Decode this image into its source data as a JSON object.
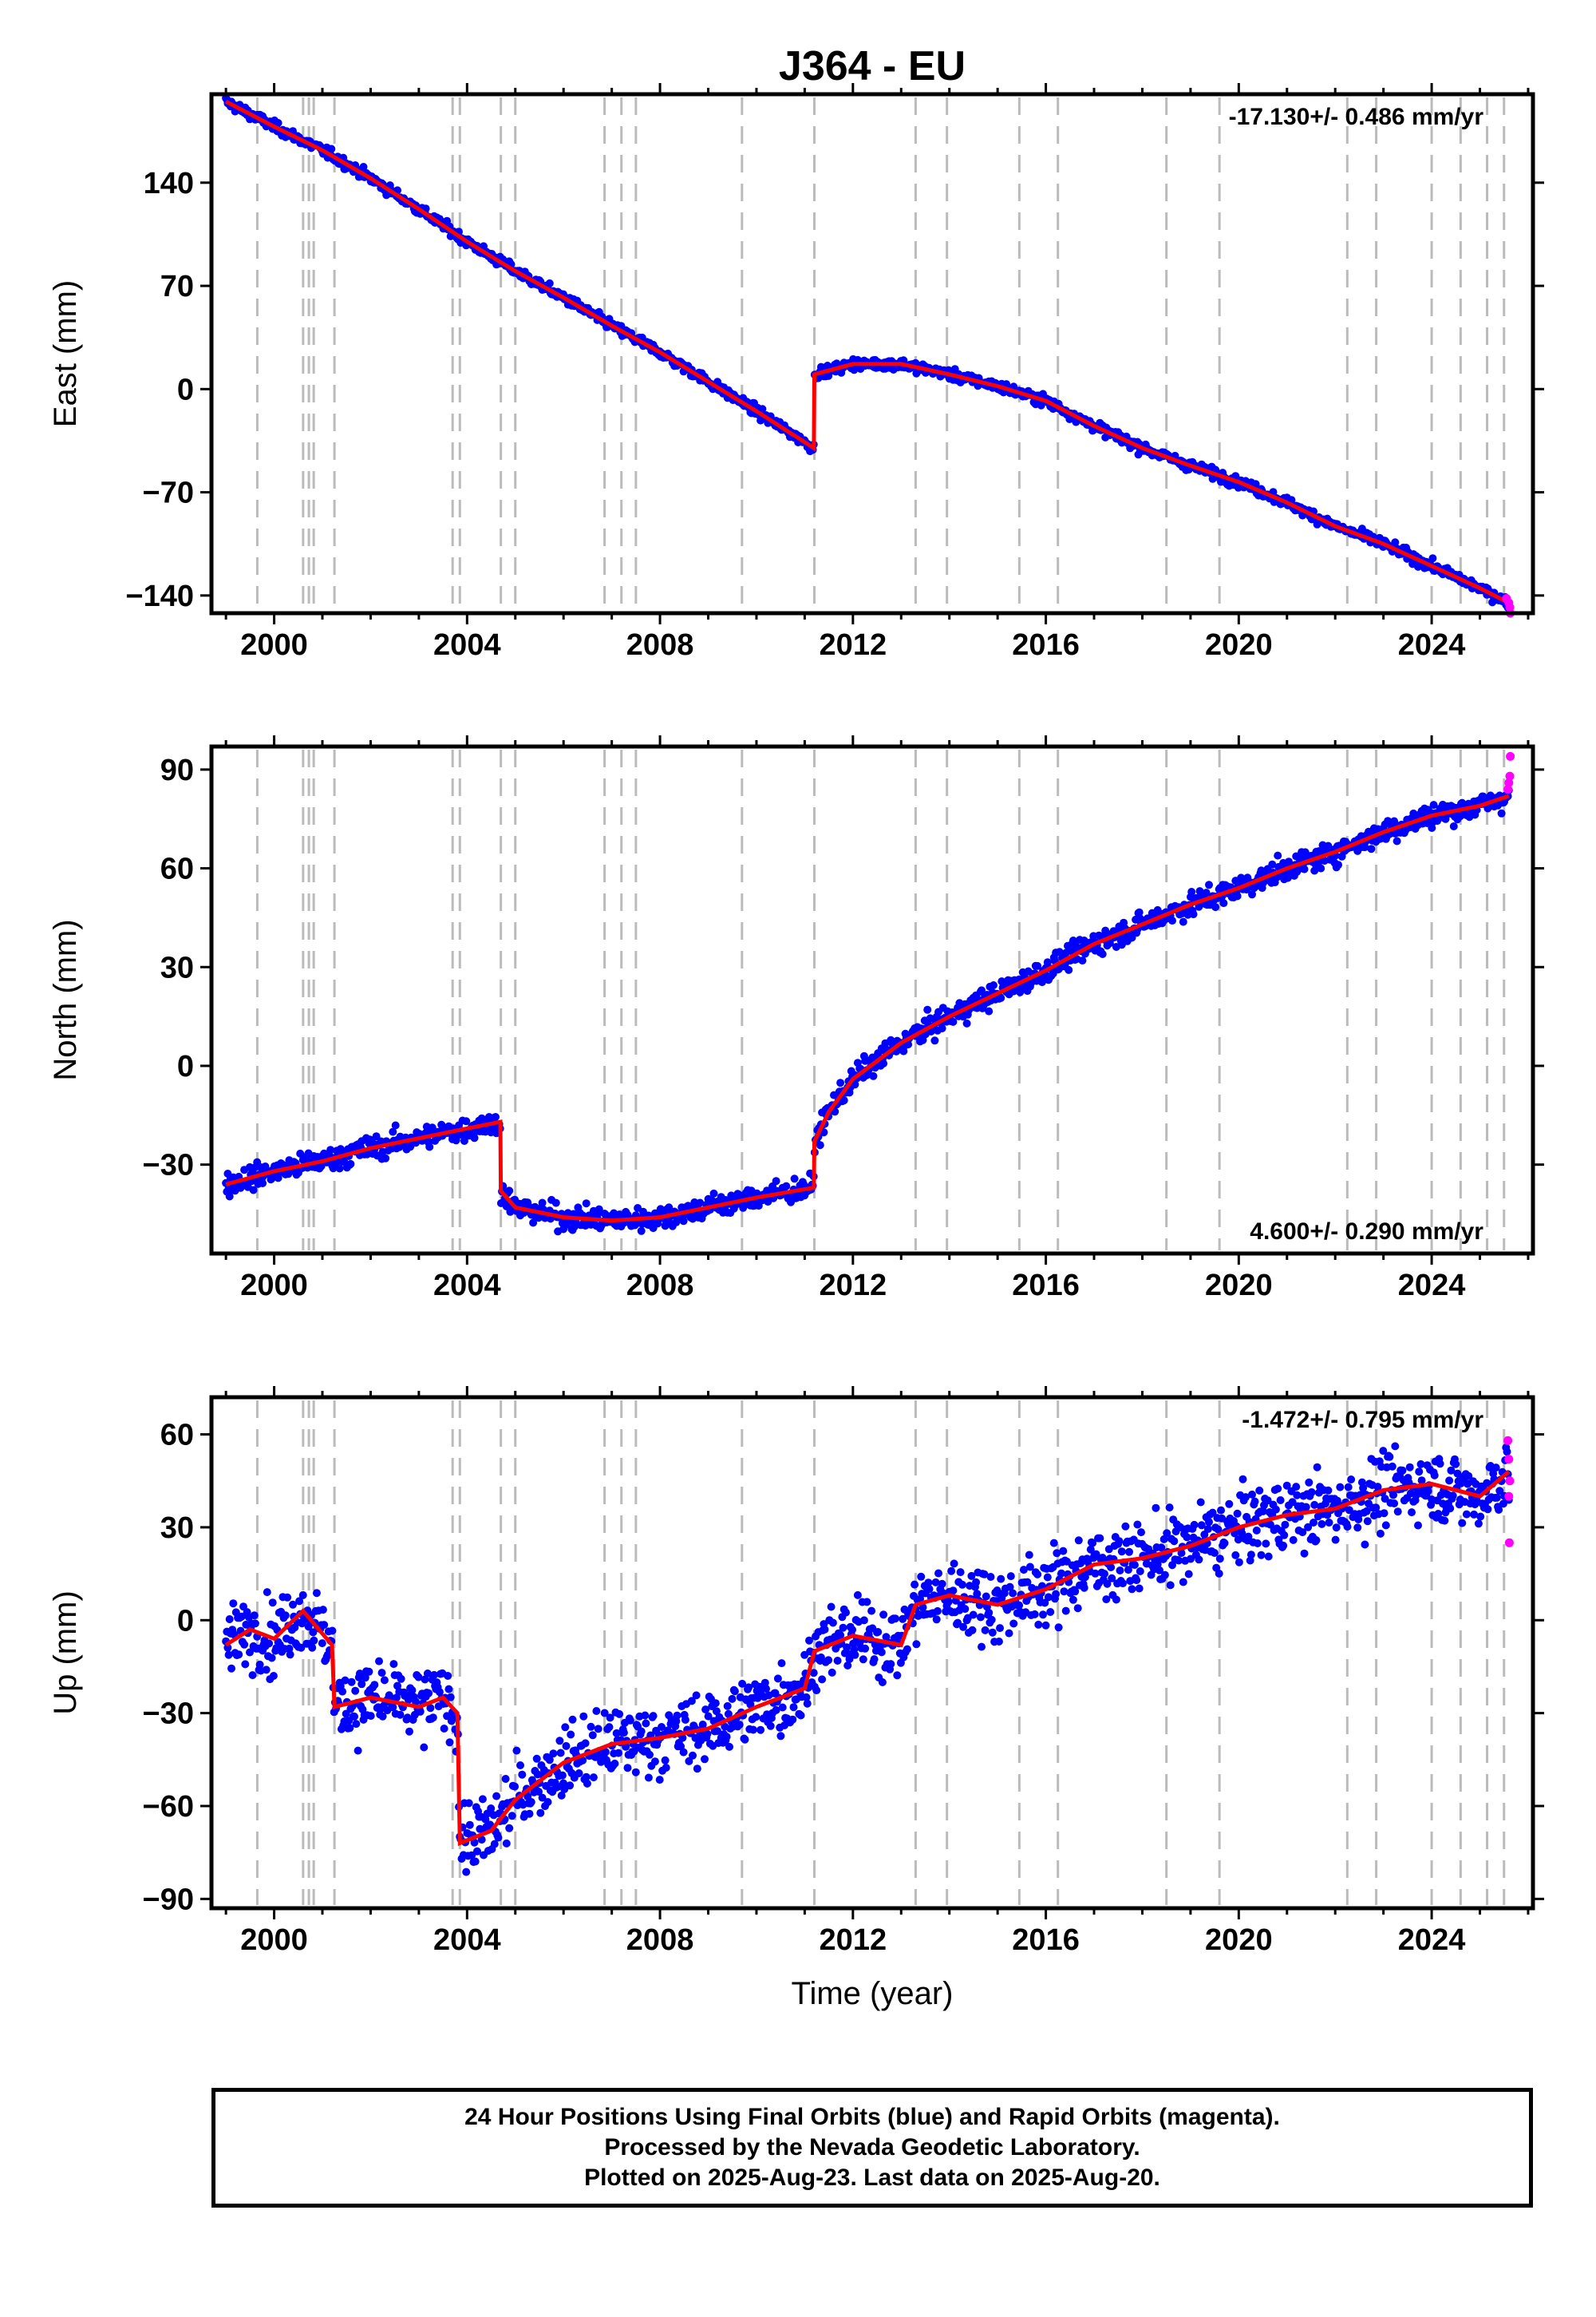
{
  "title": "J364 - EU",
  "footer": {
    "line1": "24 Hour Positions Using Final Orbits (blue) and Rapid Orbits (magenta).",
    "line2": "Processed by the Nevada Geodetic Laboratory.",
    "line3": "Plotted on 2025-Aug-23. Last data on 2025-Aug-20."
  },
  "colors": {
    "final_orbits": "#0000ff",
    "rapid_orbits": "#ff00ff",
    "model_fit": "#ff0000",
    "event_lines": "#bbbbbb"
  },
  "chart_data": [
    {
      "type": "scatter",
      "title": "J364 - EU",
      "xlabel": "",
      "ylabel": "East (mm)",
      "xlim": [
        1998.7,
        2026.1
      ],
      "ylim": [
        -152,
        200
      ],
      "x_ticks": [
        2000,
        2004,
        2008,
        2012,
        2016,
        2020,
        2024
      ],
      "y_ticks": [
        140,
        70,
        0,
        -70,
        -140
      ],
      "annotation": "-17.130+/- 0.486 mm/yr",
      "annotation_position": "top-right",
      "event_lines": [
        1999.65,
        2000.6,
        2000.72,
        2000.82,
        2001.25,
        2003.7,
        2003.85,
        2004.7,
        2005.0,
        2006.85,
        2007.2,
        2007.5,
        2009.7,
        2011.2,
        2013.3,
        2013.95,
        2015.45,
        2016.25,
        2018.5,
        2019.6,
        2022.25,
        2022.85,
        2024.0,
        2024.6,
        2025.15,
        2025.5
      ],
      "fit_knots": [
        {
          "x": 1999.0,
          "y": 195
        },
        {
          "x": 2000.0,
          "y": 178
        },
        {
          "x": 2001.0,
          "y": 162
        },
        {
          "x": 2002.0,
          "y": 143
        },
        {
          "x": 2003.0,
          "y": 122
        },
        {
          "x": 2004.0,
          "y": 100
        },
        {
          "x": 2005.0,
          "y": 80
        },
        {
          "x": 2006.0,
          "y": 62
        },
        {
          "x": 2007.0,
          "y": 43
        },
        {
          "x": 2008.0,
          "y": 25
        },
        {
          "x": 2009.0,
          "y": 5
        },
        {
          "x": 2010.0,
          "y": -15
        },
        {
          "x": 2011.19,
          "y": -40
        },
        {
          "x": 2011.2,
          "y": 10
        },
        {
          "x": 2012.0,
          "y": 17
        },
        {
          "x": 2013.0,
          "y": 17
        },
        {
          "x": 2014.0,
          "y": 10
        },
        {
          "x": 2015.0,
          "y": 2
        },
        {
          "x": 2016.0,
          "y": -8
        },
        {
          "x": 2017.0,
          "y": -25
        },
        {
          "x": 2018.0,
          "y": -40
        },
        {
          "x": 2019.0,
          "y": -52
        },
        {
          "x": 2020.0,
          "y": -63
        },
        {
          "x": 2021.0,
          "y": -77
        },
        {
          "x": 2022.0,
          "y": -93
        },
        {
          "x": 2023.0,
          "y": -105
        },
        {
          "x": 2024.0,
          "y": -120
        },
        {
          "x": 2025.0,
          "y": -135
        },
        {
          "x": 2025.6,
          "y": -145
        }
      ],
      "series": [
        {
          "name": "Final Orbits",
          "color": "#0000ff",
          "scatter": 2.5
        },
        {
          "name": "Rapid Orbits",
          "color": "#ff00ff",
          "points": [
            [
              2025.55,
              -142
            ],
            [
              2025.6,
              -145
            ],
            [
              2025.62,
              -148
            ],
            [
              2025.63,
              -152
            ]
          ]
        }
      ]
    },
    {
      "type": "scatter",
      "xlabel": "",
      "ylabel": "North (mm)",
      "xlim": [
        1998.7,
        2026.1
      ],
      "ylim": [
        -57,
        97
      ],
      "x_ticks": [
        2000,
        2004,
        2008,
        2012,
        2016,
        2020,
        2024
      ],
      "y_ticks": [
        90,
        60,
        30,
        0,
        -30
      ],
      "annotation": "4.600+/- 0.290 mm/yr",
      "annotation_position": "bottom-right",
      "event_lines": [
        1999.65,
        2000.6,
        2000.72,
        2000.82,
        2001.25,
        2003.7,
        2003.85,
        2004.7,
        2005.0,
        2006.85,
        2007.2,
        2007.5,
        2009.7,
        2011.2,
        2013.3,
        2013.95,
        2015.45,
        2016.25,
        2018.5,
        2019.6,
        2022.25,
        2022.85,
        2024.0,
        2024.6,
        2025.15,
        2025.5
      ],
      "fit_knots": [
        {
          "x": 1999.0,
          "y": -36
        },
        {
          "x": 2000.0,
          "y": -32
        },
        {
          "x": 2001.0,
          "y": -29
        },
        {
          "x": 2002.0,
          "y": -25
        },
        {
          "x": 2003.0,
          "y": -22
        },
        {
          "x": 2004.0,
          "y": -19
        },
        {
          "x": 2004.69,
          "y": -17
        },
        {
          "x": 2004.7,
          "y": -38
        },
        {
          "x": 2005.0,
          "y": -43
        },
        {
          "x": 2006.0,
          "y": -46
        },
        {
          "x": 2007.0,
          "y": -47
        },
        {
          "x": 2008.0,
          "y": -46
        },
        {
          "x": 2009.0,
          "y": -43
        },
        {
          "x": 2010.0,
          "y": -40
        },
        {
          "x": 2011.19,
          "y": -37
        },
        {
          "x": 2011.2,
          "y": -23
        },
        {
          "x": 2011.5,
          "y": -14
        },
        {
          "x": 2012.0,
          "y": -4
        },
        {
          "x": 2013.0,
          "y": 7
        },
        {
          "x": 2014.0,
          "y": 15
        },
        {
          "x": 2015.0,
          "y": 22
        },
        {
          "x": 2016.0,
          "y": 29
        },
        {
          "x": 2017.0,
          "y": 37
        },
        {
          "x": 2018.0,
          "y": 43
        },
        {
          "x": 2019.0,
          "y": 49
        },
        {
          "x": 2020.0,
          "y": 54
        },
        {
          "x": 2021.0,
          "y": 60
        },
        {
          "x": 2022.0,
          "y": 65
        },
        {
          "x": 2023.0,
          "y": 71
        },
        {
          "x": 2024.0,
          "y": 76
        },
        {
          "x": 2025.0,
          "y": 79
        },
        {
          "x": 2025.6,
          "y": 82
        }
      ],
      "series": [
        {
          "name": "Final Orbits",
          "color": "#0000ff",
          "scatter": 2.5
        },
        {
          "name": "Rapid Orbits",
          "color": "#ff00ff",
          "points": [
            [
              2025.58,
              84
            ],
            [
              2025.6,
              86
            ],
            [
              2025.62,
              88
            ],
            [
              2025.63,
              94
            ]
          ]
        }
      ]
    },
    {
      "type": "scatter",
      "xlabel": "Time (year)",
      "ylabel": "Up (mm)",
      "xlim": [
        1998.7,
        2026.1
      ],
      "ylim": [
        -93,
        72
      ],
      "x_ticks": [
        2000,
        2004,
        2008,
        2012,
        2016,
        2020,
        2024
      ],
      "y_ticks": [
        60,
        30,
        0,
        -30,
        -60,
        -90
      ],
      "annotation": "-1.472+/- 0.795 mm/yr",
      "annotation_position": "top-right",
      "event_lines": [
        1999.65,
        2000.6,
        2000.72,
        2000.82,
        2001.25,
        2003.7,
        2003.85,
        2004.7,
        2005.0,
        2006.85,
        2007.2,
        2007.5,
        2009.7,
        2011.2,
        2013.3,
        2013.95,
        2015.45,
        2016.25,
        2018.5,
        2019.6,
        2022.25,
        2022.85,
        2024.0,
        2024.6,
        2025.15,
        2025.5
      ],
      "fit_knots": [
        {
          "x": 1999.0,
          "y": -8
        },
        {
          "x": 1999.5,
          "y": -3
        },
        {
          "x": 2000.0,
          "y": -6
        },
        {
          "x": 2000.6,
          "y": 3
        },
        {
          "x": 2001.2,
          "y": -8
        },
        {
          "x": 2001.25,
          "y": -28
        },
        {
          "x": 2002.0,
          "y": -25
        },
        {
          "x": 2003.0,
          "y": -28
        },
        {
          "x": 2003.5,
          "y": -25
        },
        {
          "x": 2003.8,
          "y": -30
        },
        {
          "x": 2003.85,
          "y": -72
        },
        {
          "x": 2004.5,
          "y": -68
        },
        {
          "x": 2005.0,
          "y": -58
        },
        {
          "x": 2006.0,
          "y": -46
        },
        {
          "x": 2007.0,
          "y": -40
        },
        {
          "x": 2008.0,
          "y": -38
        },
        {
          "x": 2009.0,
          "y": -35
        },
        {
          "x": 2010.0,
          "y": -28
        },
        {
          "x": 2011.0,
          "y": -22
        },
        {
          "x": 2011.2,
          "y": -10
        },
        {
          "x": 2012.0,
          "y": -5
        },
        {
          "x": 2013.0,
          "y": -8
        },
        {
          "x": 2013.3,
          "y": 5
        },
        {
          "x": 2014.0,
          "y": 8
        },
        {
          "x": 2015.0,
          "y": 5
        },
        {
          "x": 2016.0,
          "y": 10
        },
        {
          "x": 2017.0,
          "y": 18
        },
        {
          "x": 2018.0,
          "y": 20
        },
        {
          "x": 2019.0,
          "y": 24
        },
        {
          "x": 2020.0,
          "y": 30
        },
        {
          "x": 2021.0,
          "y": 34
        },
        {
          "x": 2022.0,
          "y": 36
        },
        {
          "x": 2023.0,
          "y": 42
        },
        {
          "x": 2024.0,
          "y": 44
        },
        {
          "x": 2025.0,
          "y": 40
        },
        {
          "x": 2025.6,
          "y": 48
        }
      ],
      "series": [
        {
          "name": "Final Orbits",
          "color": "#0000ff",
          "scatter": 8
        },
        {
          "name": "Rapid Orbits",
          "color": "#ff00ff",
          "points": [
            [
              2025.58,
              58
            ],
            [
              2025.6,
              52
            ],
            [
              2025.62,
              45
            ],
            [
              2025.6,
              40
            ],
            [
              2025.61,
              25
            ]
          ]
        }
      ]
    }
  ]
}
